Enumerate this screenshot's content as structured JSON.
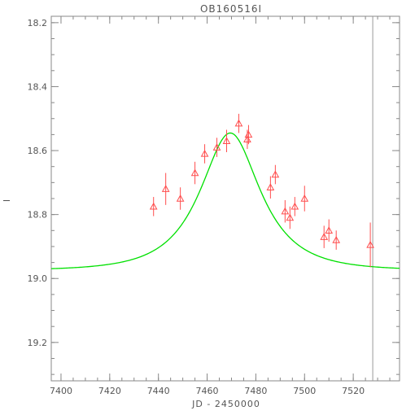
{
  "chart_data": {
    "type": "scatter",
    "title": "OB160516I",
    "xlabel": "JD - 2450000",
    "ylabel": "I",
    "xlim": [
      7396,
      7539
    ],
    "ylim": [
      19.32,
      18.18
    ],
    "y_inverted": true,
    "x_ticks": [
      7400,
      7420,
      7440,
      7460,
      7480,
      7500,
      7520
    ],
    "x_tick_labels": [
      "7400",
      "7420",
      "7440",
      "7460",
      "7480",
      "7500",
      "7520"
    ],
    "x_minor_step": 5,
    "y_ticks": [
      18.2,
      18.4,
      18.6,
      18.8,
      19.0,
      19.2
    ],
    "y_tick_labels": [
      "18.2",
      "18.4",
      "18.6",
      "18.8",
      "19.0",
      "19.2"
    ],
    "y_minor_step": 0.05,
    "grid": false,
    "series": [
      {
        "kind": "points_with_errorbars",
        "marker": "open-triangle",
        "color": "#ff4d4d",
        "x": [
          7438.0,
          7443.0,
          7449.0,
          7455.0,
          7459.0,
          7464.0,
          7468.0,
          7473.0,
          7476.5,
          7477.0,
          7486.0,
          7488.0,
          7492.0,
          7494.0,
          7496.0,
          7500.0,
          7508.0,
          7510.0,
          7513.0,
          7527.0
        ],
        "y": [
          18.775,
          18.72,
          18.75,
          18.67,
          18.61,
          18.59,
          18.57,
          18.515,
          18.565,
          18.55,
          18.715,
          18.675,
          18.79,
          18.81,
          18.775,
          18.75,
          18.87,
          18.85,
          18.88,
          18.895
        ],
        "yerr": [
          0.03,
          0.05,
          0.035,
          0.035,
          0.03,
          0.03,
          0.035,
          0.03,
          0.03,
          0.03,
          0.035,
          0.03,
          0.035,
          0.035,
          0.03,
          0.04,
          0.035,
          0.035,
          0.03,
          0.07
        ]
      },
      {
        "kind": "model_curve",
        "color": "#00e000",
        "t0": 7469.5,
        "tE": 22.0,
        "u0": 0.62,
        "baseline": 18.975
      }
    ],
    "vertical_lines": [
      {
        "x": 7528,
        "color": "#999999"
      }
    ]
  }
}
